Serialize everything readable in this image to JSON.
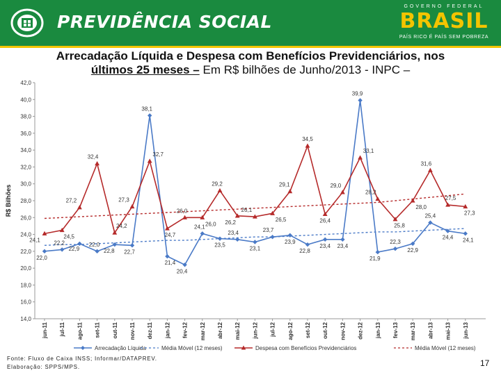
{
  "header": {
    "brand": "PREVIDÊNCIA SOCIAL",
    "gov_top": "GOVERNO FEDERAL",
    "gov_country": "BRASIL",
    "gov_slogan": "PAÍS RICO É PAÍS SEM POBREZA",
    "brand_color": "#1a8a3f",
    "accent_color": "#f3c400"
  },
  "slide": {
    "title_bold": "Arrecadação Líquida e Despesa com Benefícios Previdenciários, nos",
    "title_underlined": "últimos 25 meses –",
    "title_rest": " Em R$ bilhões de Junho/2013 - INPC –",
    "footer_line1": "Fonte: Fluxo de Caixa INSS; Informar/DATAPREV.",
    "footer_line2": "Elaboração: SPPS/MPS.",
    "page_number": "17"
  },
  "chart_data": {
    "type": "line",
    "ylabel": "R$ Bilhões",
    "ylim": [
      14,
      42
    ],
    "yticks": [
      "14,0",
      "16,0",
      "18,0",
      "20,0",
      "22,0",
      "24,0",
      "26,0",
      "28,0",
      "30,0",
      "32,0",
      "34,0",
      "36,0",
      "38,0",
      "40,0",
      "42,0"
    ],
    "categories": [
      "jun-11",
      "jul-11",
      "ago-11",
      "set-11",
      "out-11",
      "nov-11",
      "dez-11",
      "jan-12",
      "fev-12",
      "mar-12",
      "abr-12",
      "mai-12",
      "jun-12",
      "jul-12",
      "ago-12",
      "set-12",
      "out-12",
      "nov-12",
      "dez-12",
      "jan-13",
      "fev-13",
      "mar-13",
      "abr-13",
      "mai-13",
      "jun-13"
    ],
    "series": [
      {
        "name": "Arrecadação Líquida",
        "color": "#4a7ac7",
        "marker": "diamond",
        "values": [
          22.0,
          22.2,
          22.9,
          22.0,
          22.8,
          22.7,
          38.1,
          21.4,
          20.4,
          24.1,
          23.5,
          23.4,
          23.1,
          23.7,
          23.9,
          22.8,
          23.4,
          23.4,
          39.9,
          21.9,
          22.3,
          22.9,
          25.4,
          24.4,
          24.1
        ],
        "labels": [
          "22,0",
          "22,2",
          "22,9",
          "22,0",
          "22,8",
          "22,7",
          "38,1",
          "21,4",
          "20,4",
          "24,1",
          "23,5",
          "23,4",
          "23,1",
          "23,7",
          "23,9",
          "22,8",
          "23,4",
          "23,4",
          "39,9",
          "21,9",
          "22,3",
          "22,9",
          "25,4",
          "24,4",
          "24,1"
        ]
      },
      {
        "name": "Média Móvel (12 meses)",
        "color": "#4a7ac7",
        "dashed": true,
        "values": [
          22.7,
          22.8,
          22.8,
          22.9,
          23.0,
          23.1,
          23.2,
          23.3,
          23.3,
          23.4,
          23.5,
          23.6,
          23.7,
          23.7,
          23.8,
          23.9,
          24.0,
          24.1,
          24.2,
          24.3,
          24.3,
          24.4,
          24.5,
          24.6,
          24.7
        ]
      },
      {
        "name": "Despesa com Benefícios Previdenciários",
        "color": "#b52a2a",
        "marker": "triangle",
        "values": [
          24.1,
          24.5,
          27.2,
          32.4,
          24.2,
          27.3,
          32.7,
          24.7,
          26.0,
          26.0,
          29.2,
          26.2,
          26.1,
          26.5,
          29.1,
          34.5,
          26.4,
          29.0,
          33.1,
          28.2,
          25.8,
          28.0,
          31.6,
          27.5,
          27.3
        ],
        "labels": [
          "24,1",
          "24,5",
          "27,2",
          "32,4",
          "24,2",
          "27,3",
          "32,7",
          "24,7",
          "26,0",
          "26,0",
          "29,2",
          "26,2",
          "26,1",
          "26,5",
          "29,1",
          "34,5",
          "26,4",
          "29,0",
          "33,1",
          "28,2",
          "25,8",
          "28,0",
          "31,6",
          "27,5",
          "27,3"
        ]
      },
      {
        "name": "Média Móvel (12 meses)",
        "color": "#b52a2a",
        "dashed": true,
        "values": [
          25.9,
          26.0,
          26.1,
          26.2,
          26.3,
          26.4,
          26.5,
          26.6,
          26.7,
          26.8,
          26.9,
          27.0,
          27.1,
          27.2,
          27.3,
          27.4,
          27.5,
          27.6,
          27.7,
          27.8,
          28.0,
          28.2,
          28.4,
          28.6,
          28.8
        ]
      }
    ],
    "legend_position": "bottom",
    "grid": false
  }
}
